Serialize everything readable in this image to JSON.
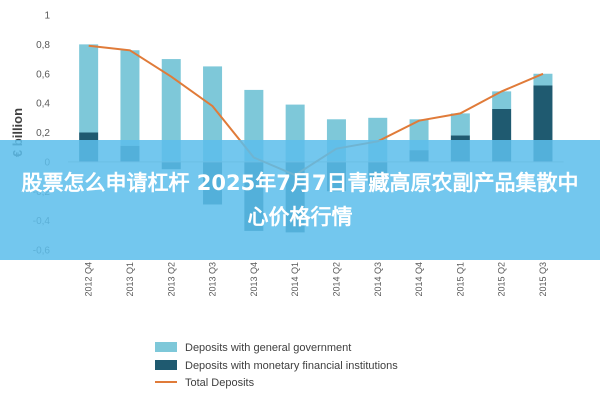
{
  "chart_data": {
    "type": "bar",
    "stacked": true,
    "ylabel": "€ billion",
    "ylim": [
      -0.6,
      1.0
    ],
    "yticks": [
      1,
      0.8,
      0.6,
      0.4,
      0.2,
      0,
      -0.2,
      -0.4,
      -0.6
    ],
    "ytick_labels": [
      "1",
      "0,8",
      "0,6",
      "0,4",
      "0,2",
      "0",
      "-0,2",
      "-0,4",
      "-0,6"
    ],
    "categories": [
      "2012 Q4",
      "2013 Q1",
      "2013 Q2",
      "2013 Q3",
      "2013 Q4",
      "2014 Q1",
      "2014 Q2",
      "2014 Q3",
      "2014 Q4",
      "2015 Q1",
      "2015 Q2",
      "2015 Q3"
    ],
    "series": [
      {
        "name": "Deposits with general government",
        "type": "bar",
        "color": "#7ec8d9",
        "values": [
          0.6,
          0.65,
          0.7,
          0.65,
          0.49,
          0.39,
          0.29,
          0.3,
          0.21,
          0.15,
          0.12,
          0.08
        ]
      },
      {
        "name": "Deposits with monetary financial institutions",
        "type": "bar",
        "color": "#1f5a70",
        "values": [
          0.2,
          0.11,
          -0.05,
          -0.29,
          -0.47,
          -0.48,
          -0.2,
          -0.16,
          0.08,
          0.18,
          0.36,
          0.52
        ]
      },
      {
        "name": "Total Deposits",
        "type": "line",
        "color": "#e07b39",
        "values": [
          0.79,
          0.76,
          0.58,
          0.38,
          0.03,
          -0.09,
          0.09,
          0.14,
          0.28,
          0.33,
          0.48,
          0.6
        ]
      }
    ],
    "legend": "bottom"
  },
  "overlay": {
    "text": "股票怎么申请杠杆 2025年7月7日青藏高原农副产品集散中心价格行情"
  }
}
